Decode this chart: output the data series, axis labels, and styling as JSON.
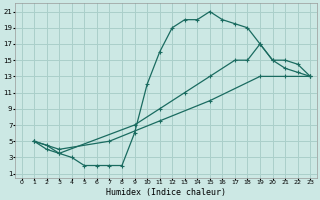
{
  "xlabel": "Humidex (Indice chaleur)",
  "bg_color": "#cce8e4",
  "grid_color": "#aacfca",
  "line_color": "#1a6b60",
  "xlim": [
    -0.5,
    23.5
  ],
  "ylim": [
    0.5,
    22
  ],
  "xticks": [
    0,
    1,
    2,
    3,
    4,
    5,
    6,
    7,
    8,
    9,
    10,
    11,
    12,
    13,
    14,
    15,
    16,
    17,
    18,
    19,
    20,
    21,
    22,
    23
  ],
  "yticks": [
    1,
    3,
    5,
    7,
    9,
    11,
    13,
    15,
    17,
    19,
    21
  ],
  "curve1_x": [
    1,
    2,
    3,
    4,
    5,
    6,
    7,
    8,
    9,
    10,
    11,
    12,
    13,
    14,
    15,
    16,
    17,
    18,
    19,
    20,
    21,
    22,
    23
  ],
  "curve1_y": [
    5,
    4,
    3.5,
    3,
    2,
    2,
    2,
    2,
    6,
    12,
    16,
    19,
    20,
    20,
    21,
    20,
    19.5,
    19,
    17,
    15,
    14,
    13.5,
    13
  ],
  "curve2_x": [
    1,
    2,
    3,
    9,
    11,
    13,
    15,
    17,
    18,
    19,
    20,
    21,
    22,
    23
  ],
  "curve2_y": [
    5,
    4.5,
    3.5,
    7,
    9,
    11,
    13,
    15,
    15,
    17,
    15,
    15,
    14.5,
    13
  ],
  "curve3_x": [
    1,
    3,
    7,
    11,
    15,
    19,
    21,
    23
  ],
  "curve3_y": [
    5,
    4,
    5,
    7.5,
    10,
    13,
    13,
    13
  ]
}
